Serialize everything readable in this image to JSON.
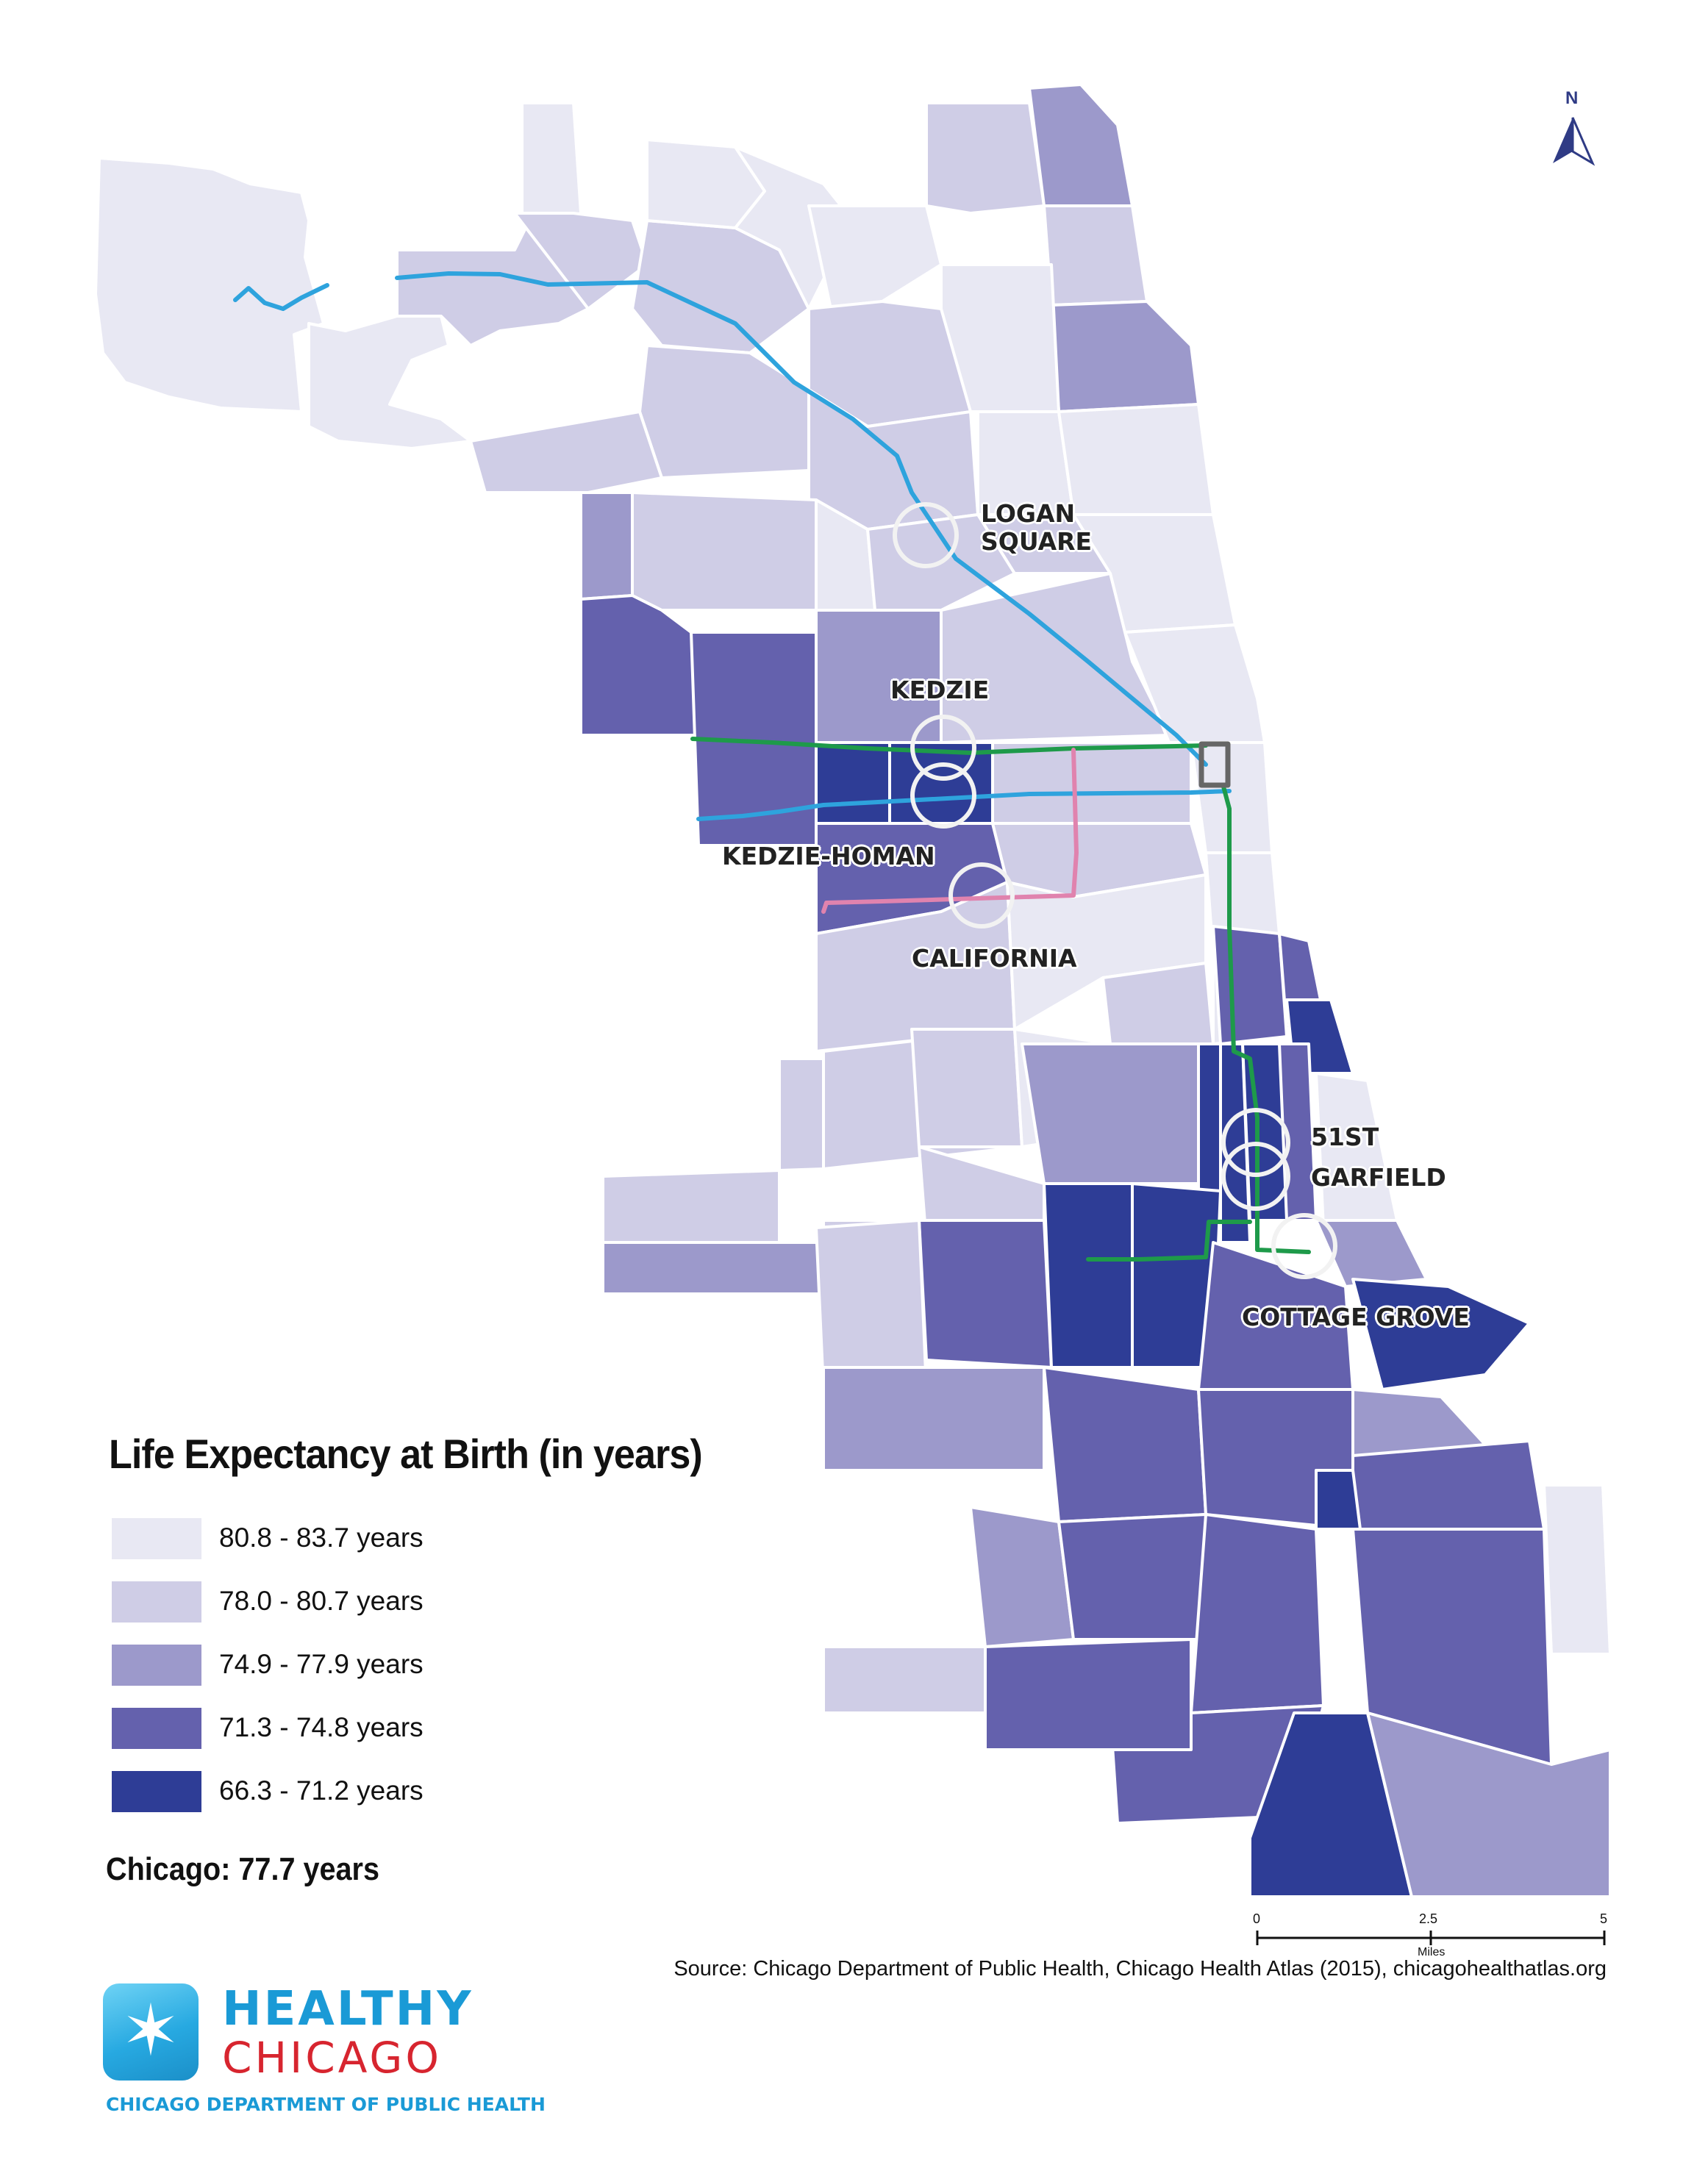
{
  "legend": {
    "title": "Life Expectancy at Birth (in years)",
    "items": [
      {
        "label": "80.8 - 83.7 years",
        "color": "#e8e8f3"
      },
      {
        "label": "78.0 - 80.7 years",
        "color": "#cfcde6"
      },
      {
        "label": "74.9 - 77.9 years",
        "color": "#9c99cb"
      },
      {
        "label": "71.3 - 74.8 years",
        "color": "#6461ad"
      },
      {
        "label": "66.3 - 71.2 years",
        "color": "#2e3d96"
      }
    ]
  },
  "city_total": "Chicago: 77.7 years",
  "stations": [
    "LOGAN SQUARE",
    "KEDZIE",
    "KEDZIE-HOMAN",
    "CALIFORNIA",
    "51ST",
    "GARFIELD",
    "COTTAGE GROVE"
  ],
  "scale_bar": {
    "ticks": [
      "0",
      "2.5",
      "5"
    ],
    "unit": "Miles"
  },
  "north_label": "N",
  "source": "Source: Chicago Department of Public Health, Chicago Health Atlas (2015), chicagohealthatlas.org",
  "logo": {
    "word1": "HEALTHY",
    "word2": "CHICAGO",
    "department": "CHICAGO DEPARTMENT OF PUBLIC HEALTH"
  },
  "transit_colors": {
    "blue_line": "#2ea3dd",
    "green_line": "#1e9a4a",
    "pink_line": "#e083ae",
    "loop": "#666666"
  }
}
